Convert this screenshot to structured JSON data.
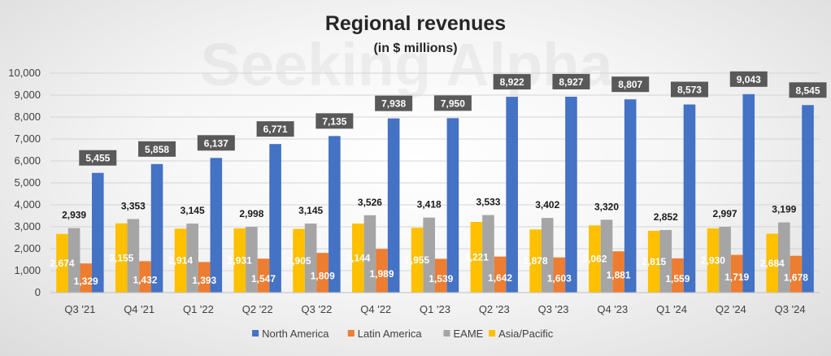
{
  "chart_data": {
    "type": "bar",
    "title": "Regional revenues",
    "subtitle": "(in $ millions)",
    "watermark": "Seeking Alpha",
    "categories": [
      "Q3 '21",
      "Q4 '21",
      "Q1 '22",
      "Q2 '22",
      "Q3 '22",
      "Q4 '22",
      "Q1 '23",
      "Q2 '23",
      "Q3 '23",
      "Q4 '23",
      "Q1 '24",
      "Q2 '24",
      "Q3 '24"
    ],
    "series": [
      {
        "name": "North America",
        "color": "#4472C4",
        "label_style": "box",
        "values": [
          5455,
          5858,
          6137,
          6771,
          7135,
          7938,
          7950,
          8922,
          8927,
          8807,
          8573,
          9043,
          8545
        ]
      },
      {
        "name": "Latin America",
        "color": "#ED7D31",
        "label_style": "white",
        "values": [
          1329,
          1432,
          1393,
          1547,
          1809,
          1989,
          1539,
          1642,
          1603,
          1881,
          1559,
          1719,
          1678
        ]
      },
      {
        "name": "EAME",
        "color": "#A5A5A5",
        "label_style": "black",
        "values": [
          2939,
          3353,
          3145,
          2998,
          3145,
          3526,
          3418,
          3533,
          3402,
          3320,
          2852,
          2997,
          3199
        ]
      },
      {
        "name": "Asia/Pacific",
        "color": "#FFC000",
        "label_style": "white",
        "values": [
          2674,
          3155,
          2914,
          2931,
          2905,
          3144,
          2955,
          3221,
          2878,
          3062,
          2815,
          2930,
          2684
        ]
      }
    ],
    "draw_order": [
      "Asia/Pacific",
      "EAME",
      "Latin America",
      "North America"
    ],
    "ylim": [
      0,
      10000
    ],
    "yticks": [
      0,
      1000,
      2000,
      3000,
      4000,
      5000,
      6000,
      7000,
      8000,
      9000,
      10000
    ],
    "grid": true,
    "legend": "bottom",
    "xlabel": "",
    "ylabel": ""
  }
}
